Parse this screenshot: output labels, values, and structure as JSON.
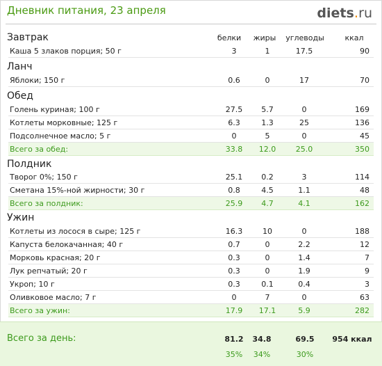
{
  "header": {
    "title": "Дневник питания, 23 апреля",
    "logo_main": "diets",
    "logo_dot": ".",
    "logo_tld": "ru"
  },
  "columns": {
    "protein": "белки",
    "fat": "жиры",
    "carbs": "углеводы",
    "kcal": "ккал"
  },
  "meals": {
    "breakfast": {
      "title": "Завтрак",
      "items": [
        {
          "name": "Каша 5 злаков порция; 50 г",
          "protein": "3",
          "fat": "1",
          "carbs": "17.5",
          "kcal": "90"
        }
      ]
    },
    "lunch": {
      "title": "Ланч",
      "items": [
        {
          "name": "Яблоки; 150 г",
          "protein": "0.6",
          "fat": "0",
          "carbs": "17",
          "kcal": "70"
        }
      ]
    },
    "dinner_mid": {
      "title": "Обед",
      "items": [
        {
          "name": "Голень куриная; 100 г",
          "protein": "27.5",
          "fat": "5.7",
          "carbs": "0",
          "kcal": "169"
        },
        {
          "name": "Котлеты морковные; 125 г",
          "protein": "6.3",
          "fat": "1.3",
          "carbs": "25",
          "kcal": "136"
        },
        {
          "name": "Подсолнечное масло; 5 г",
          "protein": "0",
          "fat": "5",
          "carbs": "0",
          "kcal": "45"
        }
      ],
      "total": {
        "label": "Всего за обед:",
        "protein": "33.8",
        "fat": "12.0",
        "carbs": "25.0",
        "kcal": "350"
      }
    },
    "snack": {
      "title": "Полдник",
      "items": [
        {
          "name": "Творог 0%; 150 г",
          "protein": "25.1",
          "fat": "0.2",
          "carbs": "3",
          "kcal": "114"
        },
        {
          "name": "Сметана 15%-ной жирности; 30 г",
          "protein": "0.8",
          "fat": "4.5",
          "carbs": "1.1",
          "kcal": "48"
        }
      ],
      "total": {
        "label": "Всего за полдник:",
        "protein": "25.9",
        "fat": "4.7",
        "carbs": "4.1",
        "kcal": "162"
      }
    },
    "supper": {
      "title": "Ужин",
      "items": [
        {
          "name": "Котлеты из лосося в сыре; 125 г",
          "protein": "16.3",
          "fat": "10",
          "carbs": "0",
          "kcal": "188"
        },
        {
          "name": "Капуста белокачанная; 40 г",
          "protein": "0.7",
          "fat": "0",
          "carbs": "2.2",
          "kcal": "12"
        },
        {
          "name": "Морковь красная; 20 г",
          "protein": "0.3",
          "fat": "0",
          "carbs": "1.4",
          "kcal": "7"
        },
        {
          "name": "Лук репчатый; 20 г",
          "protein": "0.3",
          "fat": "0",
          "carbs": "1.9",
          "kcal": "9"
        },
        {
          "name": "Укроп; 10 г",
          "protein": "0.3",
          "fat": "0.1",
          "carbs": "0.4",
          "kcal": "3"
        },
        {
          "name": "Оливковое масло; 7 г",
          "protein": "0",
          "fat": "7",
          "carbs": "0",
          "kcal": "63"
        }
      ],
      "total": {
        "label": "Всего за ужин:",
        "protein": "17.9",
        "fat": "17.1",
        "carbs": "5.9",
        "kcal": "282"
      }
    }
  },
  "day_total": {
    "label": "Всего за день:",
    "protein": "81.2",
    "fat": "34.8",
    "carbs": "69.5",
    "kcal": "954 ккал",
    "protein_pct": "35%",
    "fat_pct": "34%",
    "carbs_pct": "30%"
  },
  "colors": {
    "accent_green": "#4a9a12",
    "total_bg": "#eef8e6",
    "logo_dot": "#f08a00"
  }
}
